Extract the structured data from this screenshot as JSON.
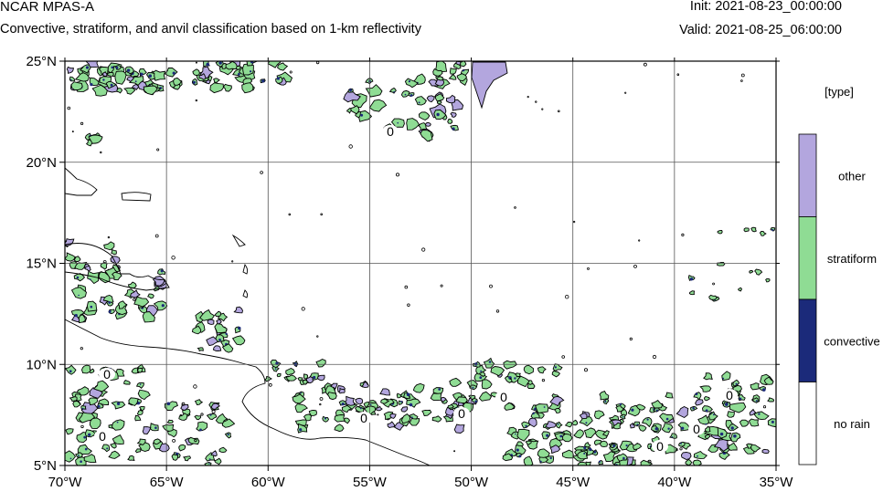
{
  "header": {
    "model_name": "NCAR MPAS-A",
    "description": "Convective, stratiform, and anvil classification based on 1-km reflectivity",
    "init_time": "Init: 2021-08-23_00:00:00",
    "valid_time": "Valid: 2021-08-25_06:00:00"
  },
  "map": {
    "lon_range": [
      -70,
      -35
    ],
    "lat_range": [
      5,
      25
    ],
    "lon_ticks": [
      {
        "value": -70,
        "label": "70°W"
      },
      {
        "value": -65,
        "label": "65°W"
      },
      {
        "value": -60,
        "label": "60°W"
      },
      {
        "value": -55,
        "label": "55°W"
      },
      {
        "value": -50,
        "label": "50°W"
      },
      {
        "value": -45,
        "label": "45°W"
      },
      {
        "value": -40,
        "label": "40°W"
      },
      {
        "value": -35,
        "label": "35°W"
      }
    ],
    "lat_ticks": [
      {
        "value": 5,
        "label": "5°N"
      },
      {
        "value": 10,
        "label": "10°N"
      },
      {
        "value": 15,
        "label": "15°N"
      },
      {
        "value": 20,
        "label": "20°N"
      },
      {
        "value": 25,
        "label": "25°N"
      }
    ],
    "contour_label": "0",
    "gridlines": true
  },
  "legend": {
    "title": "[type]",
    "entries": [
      {
        "label": "other",
        "color": "#b3a6de"
      },
      {
        "label": "stratiform",
        "color": "#8fdc94"
      },
      {
        "label": "convective",
        "color": "#1b2a7a"
      },
      {
        "label": "no rain",
        "color": "#ffffff"
      }
    ]
  },
  "colors": {
    "stratiform": "#8fdc94",
    "other": "#b3a6de",
    "convective": "#1b2a7a",
    "grid": "#555555"
  }
}
